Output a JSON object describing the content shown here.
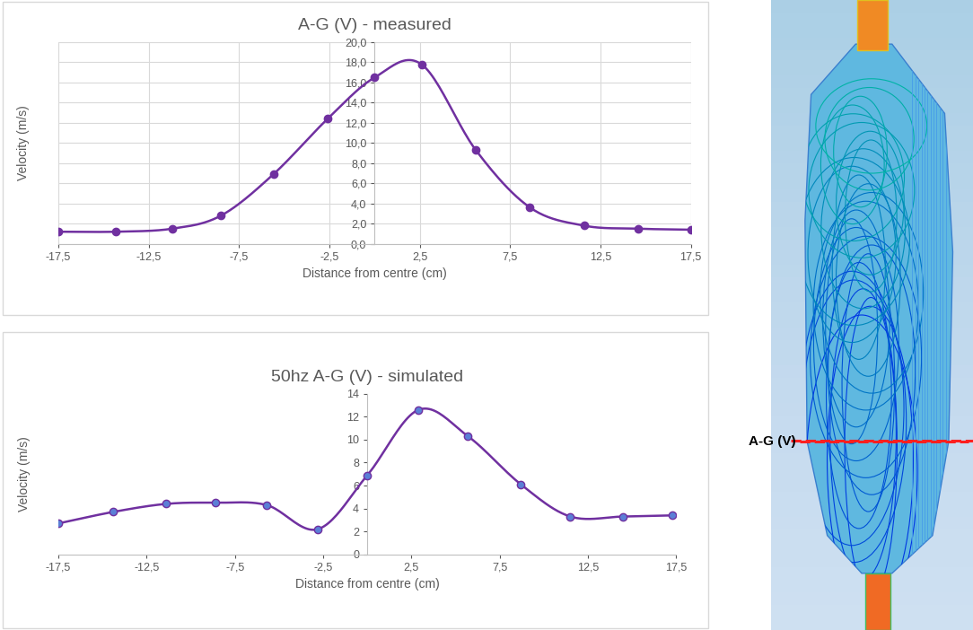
{
  "chart_data": [
    {
      "type": "line",
      "title": "A-G (V) - measured",
      "x_label": "Distance from centre (cm)",
      "y_label": "Velocity (m/s)",
      "x": [
        -17.5,
        -14.3,
        -11.2,
        -8.5,
        -5.6,
        -2.6,
        0,
        2.6,
        5.6,
        8.6,
        11.6,
        14.6,
        17.5
      ],
      "values": [
        1.2,
        1.2,
        1.5,
        2.8,
        6.9,
        12.4,
        16.5,
        17.8,
        9.3,
        3.6,
        1.8,
        1.5,
        1.4
      ],
      "color": "#7030a0",
      "marker": "circle",
      "line_style": "smooth",
      "grid": true,
      "xlim": [
        -17.5,
        17.5
      ],
      "xticks": [
        {
          "value": -17.5,
          "label": "-17,5"
        },
        {
          "value": -12.5,
          "label": "-12,5"
        },
        {
          "value": -7.5,
          "label": "-7,5"
        },
        {
          "value": -2.5,
          "label": "-2,5"
        },
        {
          "value": 2.5,
          "label": "2,5"
        },
        {
          "value": 7.5,
          "label": "7,5"
        },
        {
          "value": 12.5,
          "label": "12,5"
        },
        {
          "value": 17.5,
          "label": "17,5"
        }
      ],
      "ylim": [
        0,
        20
      ],
      "yticks": [
        {
          "value": 0,
          "label": "0,0"
        },
        {
          "value": 2,
          "label": "2,0"
        },
        {
          "value": 4,
          "label": "4,0"
        },
        {
          "value": 6,
          "label": "6,0"
        },
        {
          "value": 8,
          "label": "8,0"
        },
        {
          "value": 10,
          "label": "10,0"
        },
        {
          "value": 12,
          "label": "12,0"
        },
        {
          "value": 14,
          "label": "14,0"
        },
        {
          "value": 16,
          "label": "16,0"
        },
        {
          "value": 18,
          "label": "18,0"
        },
        {
          "value": 20,
          "label": "20,0"
        }
      ]
    },
    {
      "type": "line",
      "title": "50hz A-G (V) - simulated",
      "x_label": "Distance from centre (cm)",
      "y_label": "Velocity (m/s)",
      "x": [
        -17.5,
        -14.4,
        -11.4,
        -8.6,
        -5.7,
        -2.8,
        0,
        2.9,
        5.7,
        8.7,
        11.5,
        14.5,
        17.3
      ],
      "values": [
        2.7,
        3.7,
        4.4,
        4.5,
        4.3,
        2.2,
        6.9,
        12.6,
        10.3,
        6.1,
        3.3,
        3.3,
        3.4
      ],
      "color": "#7030a0",
      "marker": "circle",
      "line_style": "smooth",
      "grid": false,
      "xlim": [
        -17.5,
        17.5
      ],
      "xticks": [
        {
          "value": -17.5,
          "label": "-17,5"
        },
        {
          "value": -12.5,
          "label": "-12,5"
        },
        {
          "value": -7.5,
          "label": "-7,5"
        },
        {
          "value": -2.5,
          "label": "-2,5"
        },
        {
          "value": 2.5,
          "label": "2,5"
        },
        {
          "value": 7.5,
          "label": "7,5"
        },
        {
          "value": 12.5,
          "label": "12,5"
        },
        {
          "value": 17.5,
          "label": "17,5"
        }
      ],
      "ylim": [
        0,
        14
      ],
      "yticks": [
        0,
        2,
        4,
        6,
        8,
        10,
        12,
        14
      ]
    }
  ],
  "side_image": {
    "type": "image",
    "label": "A-G (V)"
  }
}
